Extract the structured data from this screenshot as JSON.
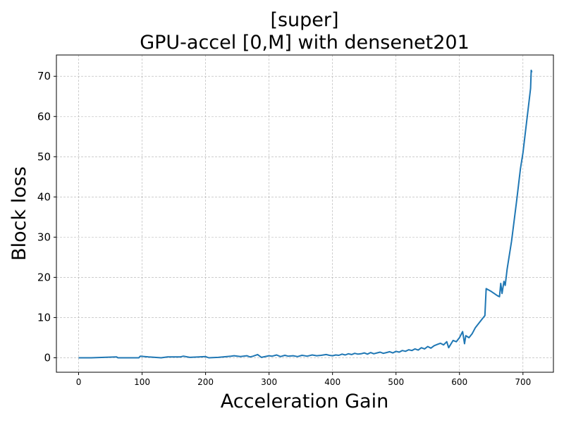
{
  "chart_data": {
    "type": "line",
    "title_line1": "[super]",
    "title_line2": "GPU-accel [0,M] with densenet201",
    "xlabel": "Acceleration Gain",
    "ylabel": "Block loss",
    "xlim": [
      -35,
      748
    ],
    "ylim": [
      -3.6,
      75.3
    ],
    "xticks": [
      0,
      100,
      200,
      300,
      400,
      500,
      600,
      700
    ],
    "yticks": [
      0,
      10,
      20,
      30,
      40,
      50,
      60,
      70
    ],
    "grid": true,
    "line_color": "#1f77b4",
    "series": [
      {
        "x": [
          0,
          20,
          40,
          60,
          62,
          80,
          95,
          97,
          110,
          130,
          140,
          160,
          165,
          175,
          190,
          200,
          205,
          220,
          240,
          245,
          255,
          265,
          270,
          275,
          282,
          288,
          300,
          305,
          312,
          318,
          325,
          330,
          338,
          345,
          352,
          360,
          368,
          375,
          382,
          390,
          395,
          400,
          405,
          410,
          415,
          420,
          425,
          430,
          435,
          440,
          445,
          450,
          455,
          460,
          465,
          470,
          475,
          480,
          485,
          490,
          495,
          500,
          505,
          510,
          515,
          520,
          525,
          530,
          535,
          540,
          545,
          550,
          555,
          560,
          565,
          570,
          575,
          580,
          583,
          590,
          595,
          600,
          605,
          608,
          610,
          615,
          620,
          625,
          630,
          635,
          640,
          642,
          650,
          660,
          663,
          665,
          667,
          670,
          672,
          675,
          678,
          682,
          686,
          690,
          693,
          696,
          700,
          703,
          706,
          709,
          712,
          713,
          714
        ],
        "y": [
          0,
          0,
          0.1,
          0.2,
          0,
          0,
          0,
          0.4,
          0.2,
          0,
          0.2,
          0.2,
          0.4,
          0.1,
          0.2,
          0.3,
          0,
          0.1,
          0.4,
          0.5,
          0.3,
          0.5,
          0.2,
          0.4,
          0.8,
          0.1,
          0.5,
          0.4,
          0.7,
          0.3,
          0.6,
          0.4,
          0.5,
          0.3,
          0.6,
          0.4,
          0.7,
          0.5,
          0.6,
          0.8,
          0.6,
          0.5,
          0.7,
          0.6,
          0.9,
          0.7,
          1.0,
          0.8,
          1.1,
          0.9,
          1.0,
          1.2,
          0.9,
          1.3,
          1.0,
          1.2,
          1.4,
          1.1,
          1.3,
          1.5,
          1.2,
          1.6,
          1.4,
          1.8,
          1.6,
          2.0,
          1.8,
          2.2,
          1.9,
          2.5,
          2.2,
          2.8,
          2.4,
          3.0,
          3.3,
          3.6,
          3.2,
          4.0,
          2.5,
          4.3,
          4.0,
          5.0,
          6.5,
          3.5,
          5.5,
          5.0,
          6.0,
          7.5,
          8.5,
          9.5,
          10.5,
          17.2,
          16.5,
          15.4,
          15.2,
          18.5,
          16.0,
          19.0,
          18.0,
          22.0,
          25.0,
          29.0,
          34.0,
          39.0,
          43.0,
          47.0,
          51.0,
          55.0,
          59.0,
          63.0,
          67.0,
          71.5,
          71.0
        ]
      }
    ]
  }
}
